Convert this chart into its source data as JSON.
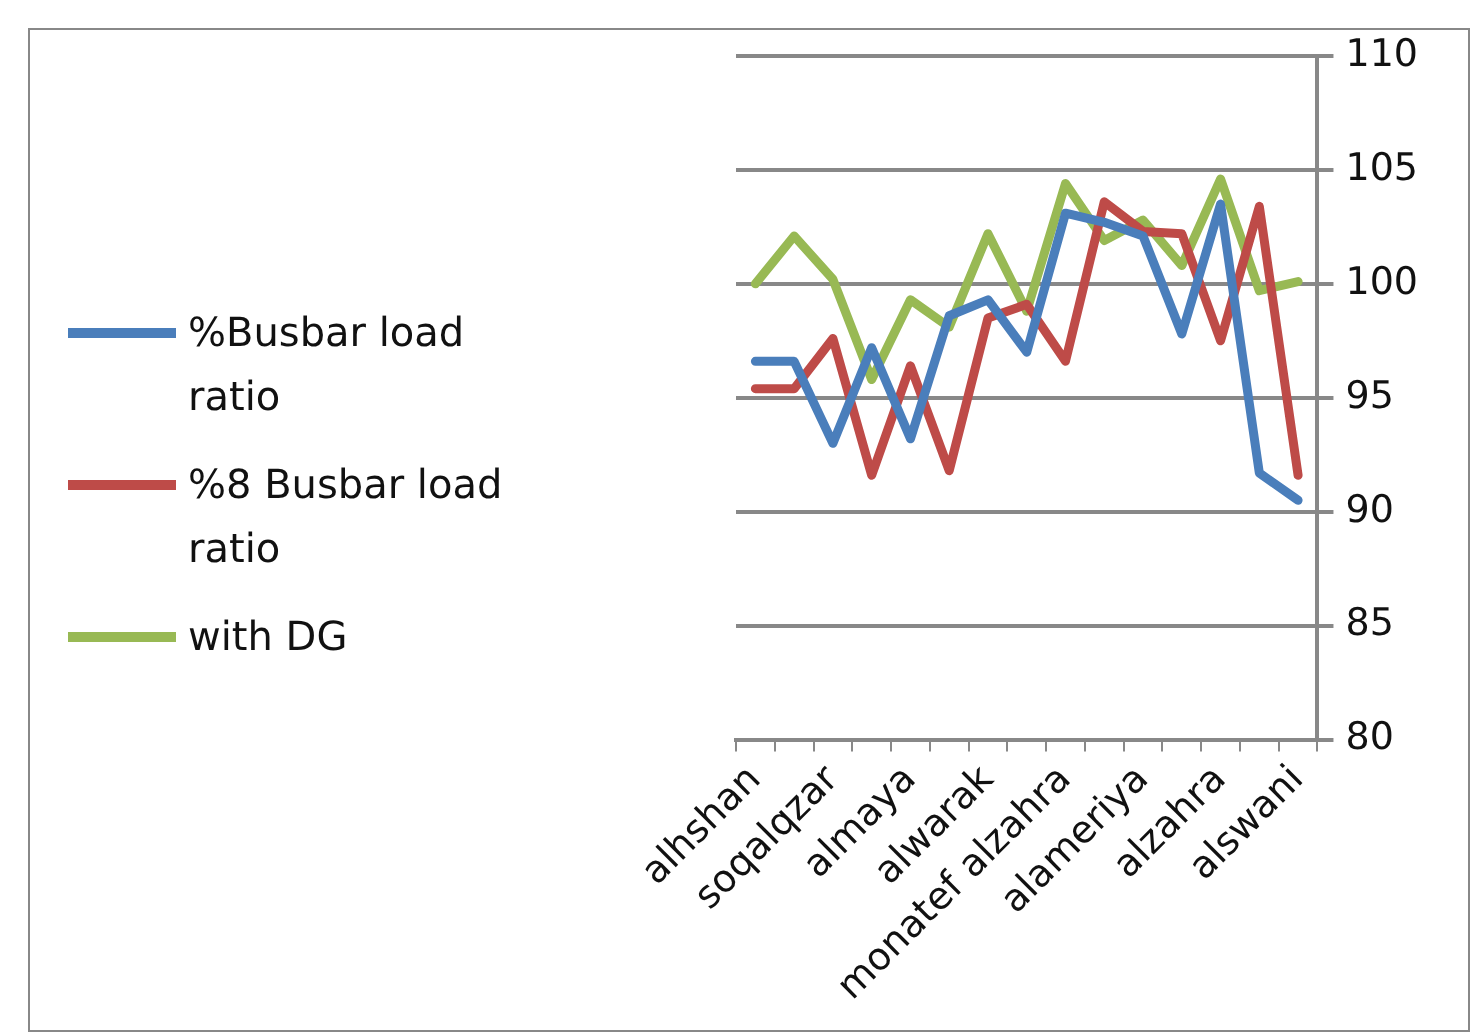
{
  "chart_data": {
    "type": "line",
    "categories": [
      "alhshan",
      null,
      "soqalqzar",
      null,
      "almaya",
      null,
      "alwarak",
      null,
      "monatef alzahra",
      null,
      "alameriya",
      null,
      "alzahra",
      null,
      "alswani"
    ],
    "series": [
      {
        "name": "%Busbar load ratio",
        "color": "#4a7ebb",
        "values": [
          96.6,
          96.6,
          93.0,
          97.2,
          93.2,
          98.6,
          99.3,
          97.0,
          103.1,
          102.7,
          102.1,
          97.8,
          103.5,
          91.7,
          90.5
        ]
      },
      {
        "name": "%8 Busbar load ratio",
        "color": "#be4b48",
        "values": [
          95.4,
          95.4,
          97.6,
          91.6,
          96.4,
          91.8,
          98.5,
          99.1,
          96.6,
          103.6,
          102.3,
          102.2,
          97.5,
          103.4,
          91.6
        ]
      },
      {
        "name": "with DG",
        "color": "#98b954",
        "values": [
          100.0,
          102.1,
          100.2,
          95.8,
          99.3,
          98.1,
          102.2,
          98.8,
          104.4,
          101.9,
          102.8,
          100.8,
          104.6,
          99.7,
          100.1
        ]
      }
    ],
    "ylim": [
      80,
      110
    ],
    "yticks": [
      80,
      85,
      90,
      95,
      100,
      105,
      110
    ],
    "grid": "y",
    "legend": "left",
    "marker": "none",
    "line_style": "solid"
  }
}
